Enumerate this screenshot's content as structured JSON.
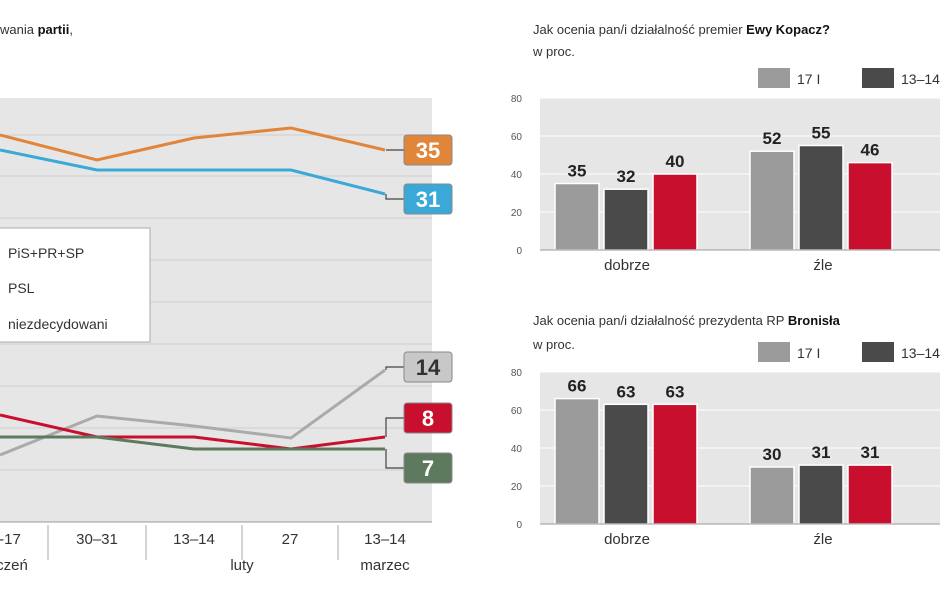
{
  "left": {
    "title_pre": "wania ",
    "title_bold": "partii",
    "title_post": ",",
    "legend": [
      {
        "label": "PiS+PR+SP"
      },
      {
        "label": "PSL"
      },
      {
        "label": "niezdecydowani"
      }
    ],
    "x_ticks": [
      "-17",
      "30–31",
      "13–14",
      "27",
      "13–14"
    ],
    "months": [
      "czeń",
      "luty",
      "marzec"
    ]
  },
  "right_top": {
    "title_pre": "Jak ocenia pan/i działalność premier ",
    "title_bold": "Ewy Kopacz?",
    "unit": "w proc.",
    "legend": [
      "17 I",
      "13–14"
    ]
  },
  "right_bottom": {
    "title_pre": "Jak ocenia pan/i działalność prezydenta RP ",
    "title_bold": "Bronisła",
    "unit": "w proc.",
    "legend": [
      "17 I",
      "13–14"
    ]
  },
  "chart_data": [
    {
      "type": "line",
      "x": [
        "-17",
        "30–31",
        "13–14",
        "27",
        "13–14"
      ],
      "series": [
        {
          "color": "#e0853a",
          "values": [
            null,
            null,
            null,
            null,
            35
          ]
        },
        {
          "color": "#3aa9d8",
          "values": [
            null,
            null,
            null,
            null,
            31
          ]
        },
        {
          "color": "#aaaaaa",
          "values": [
            null,
            null,
            null,
            null,
            14
          ]
        },
        {
          "color": "#c8102e",
          "values": [
            null,
            null,
            null,
            null,
            8
          ]
        },
        {
          "color": "#5e7a5e",
          "values": [
            null,
            null,
            null,
            null,
            7
          ]
        }
      ],
      "end_labels": [
        {
          "value": "35",
          "color": "#e0853a"
        },
        {
          "value": "31",
          "color": "#3aa9d8"
        },
        {
          "value": "14",
          "color": "#c8c8c8"
        },
        {
          "value": "8",
          "color": "#c8102e"
        },
        {
          "value": "7",
          "color": "#5e7a5e"
        }
      ]
    },
    {
      "type": "bar",
      "ylim": [
        0,
        80
      ],
      "yticks": [
        "80",
        "60",
        "40",
        "20",
        "0"
      ],
      "categories": [
        "dobrze",
        "źle"
      ],
      "groups": [
        [
          35,
          32,
          40
        ],
        [
          52,
          55,
          46
        ]
      ],
      "series_colors": [
        "#9b9b9b",
        "#4a4a4a",
        "#c8102e"
      ]
    },
    {
      "type": "bar",
      "ylim": [
        0,
        80
      ],
      "yticks": [
        "80",
        "60",
        "40",
        "20",
        "0"
      ],
      "categories": [
        "dobrze",
        "źle"
      ],
      "groups": [
        [
          66,
          63,
          63
        ],
        [
          30,
          31,
          31
        ]
      ],
      "series_colors": [
        "#9b9b9b",
        "#4a4a4a",
        "#c8102e"
      ]
    }
  ]
}
